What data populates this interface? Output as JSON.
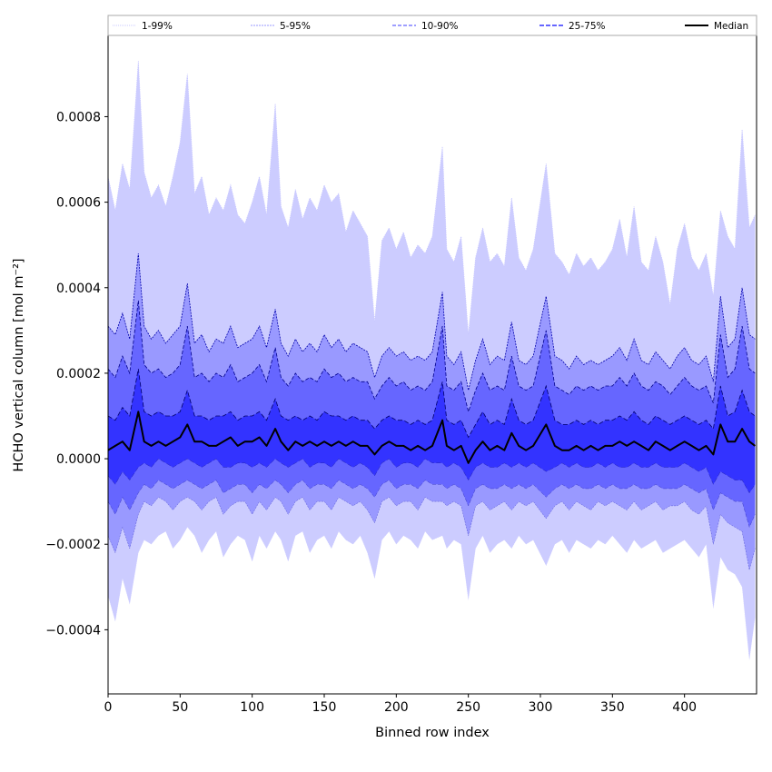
{
  "chart_data": {
    "type": "area",
    "title": "",
    "xlabel": "Binned row index",
    "ylabel": "HCHO vertical column [mol m⁻²]",
    "xlim": [
      0,
      450
    ],
    "ylim": [
      -0.00055,
      0.00099
    ],
    "x_ticks": [
      0,
      50,
      100,
      150,
      200,
      250,
      300,
      350,
      400
    ],
    "x_tick_labels": [
      "0",
      "50",
      "100",
      "150",
      "200",
      "250",
      "300",
      "350",
      "400"
    ],
    "y_ticks": [
      -0.0004,
      -0.0002,
      0.0,
      0.0002,
      0.0004,
      0.0006,
      0.0008
    ],
    "y_tick_labels": [
      "−0.0004",
      "−0.0002",
      "0.0000",
      "0.0002",
      "0.0004",
      "0.0006",
      "0.0008"
    ],
    "grid": false,
    "legend_position": "top, above plot, single row",
    "x": [
      0,
      5,
      10,
      15,
      21,
      25,
      30,
      35,
      40,
      45,
      50,
      55,
      60,
      65,
      70,
      75,
      80,
      85,
      90,
      95,
      100,
      105,
      110,
      116,
      120,
      125,
      130,
      135,
      140,
      145,
      150,
      155,
      160,
      165,
      170,
      175,
      180,
      185,
      190,
      195,
      200,
      205,
      210,
      215,
      220,
      225,
      232,
      235,
      240,
      245,
      250,
      255,
      260,
      265,
      270,
      275,
      280,
      285,
      290,
      295,
      304,
      310,
      315,
      320,
      325,
      330,
      335,
      340,
      345,
      350,
      355,
      360,
      365,
      370,
      375,
      380,
      385,
      390,
      395,
      400,
      405,
      410,
      415,
      420,
      425,
      430,
      435,
      440,
      445,
      449
    ],
    "series": [
      {
        "name": "1-99%",
        "color": "#ccccff",
        "upper": [
          0.00066,
          0.00058,
          0.00069,
          0.00063,
          0.00093,
          0.00067,
          0.00061,
          0.00064,
          0.00059,
          0.00066,
          0.00074,
          0.0009,
          0.00062,
          0.00066,
          0.00057,
          0.00061,
          0.00058,
          0.00064,
          0.00057,
          0.00055,
          0.0006,
          0.00066,
          0.00057,
          0.00083,
          0.00059,
          0.00054,
          0.00063,
          0.00056,
          0.00061,
          0.00058,
          0.00064,
          0.0006,
          0.00062,
          0.00053,
          0.00058,
          0.00055,
          0.00052,
          0.00032,
          0.00051,
          0.00054,
          0.00049,
          0.00053,
          0.00047,
          0.0005,
          0.00048,
          0.00052,
          0.00073,
          0.00049,
          0.00046,
          0.00052,
          0.00029,
          0.00047,
          0.00054,
          0.00046,
          0.00048,
          0.00045,
          0.00061,
          0.00047,
          0.00044,
          0.00049,
          0.00069,
          0.00048,
          0.00046,
          0.00043,
          0.00048,
          0.00045,
          0.00047,
          0.00044,
          0.00046,
          0.00049,
          0.00056,
          0.00047,
          0.00059,
          0.00046,
          0.00044,
          0.00052,
          0.00046,
          0.00036,
          0.00049,
          0.00055,
          0.00047,
          0.00044,
          0.00048,
          0.00038,
          0.00058,
          0.00052,
          0.00049,
          0.00077,
          0.00054,
          0.00057
        ],
        "lower": [
          -0.00032,
          -0.00038,
          -0.00028,
          -0.00034,
          -0.00022,
          -0.00019,
          -0.0002,
          -0.00018,
          -0.00017,
          -0.00021,
          -0.00019,
          -0.00016,
          -0.00018,
          -0.00022,
          -0.00019,
          -0.00017,
          -0.00023,
          -0.0002,
          -0.00018,
          -0.00019,
          -0.00024,
          -0.00018,
          -0.00021,
          -0.00017,
          -0.00019,
          -0.00024,
          -0.00018,
          -0.00017,
          -0.00022,
          -0.00019,
          -0.00018,
          -0.00021,
          -0.00017,
          -0.00019,
          -0.0002,
          -0.00018,
          -0.00022,
          -0.00028,
          -0.00019,
          -0.00017,
          -0.0002,
          -0.00018,
          -0.00019,
          -0.00021,
          -0.00017,
          -0.00019,
          -0.00018,
          -0.00021,
          -0.00019,
          -0.0002,
          -0.00033,
          -0.00021,
          -0.00018,
          -0.00022,
          -0.0002,
          -0.00019,
          -0.00021,
          -0.00018,
          -0.0002,
          -0.00019,
          -0.00025,
          -0.0002,
          -0.00019,
          -0.00022,
          -0.00019,
          -0.0002,
          -0.00021,
          -0.00019,
          -0.0002,
          -0.00018,
          -0.0002,
          -0.00022,
          -0.00019,
          -0.00021,
          -0.0002,
          -0.00019,
          -0.00022,
          -0.00021,
          -0.0002,
          -0.00019,
          -0.00021,
          -0.00023,
          -0.0002,
          -0.00035,
          -0.00023,
          -0.00026,
          -0.00027,
          -0.0003,
          -0.00047,
          -0.00037
        ]
      },
      {
        "name": "5-95%",
        "color": "#9999ff",
        "upper": [
          0.00031,
          0.00029,
          0.00034,
          0.00028,
          0.00048,
          0.00031,
          0.00028,
          0.0003,
          0.00027,
          0.00029,
          0.00031,
          0.00041,
          0.00027,
          0.00029,
          0.00025,
          0.00028,
          0.00027,
          0.00031,
          0.00026,
          0.00027,
          0.00028,
          0.00031,
          0.00026,
          0.00035,
          0.00027,
          0.00024,
          0.00028,
          0.00025,
          0.00027,
          0.00025,
          0.00029,
          0.00026,
          0.00028,
          0.00025,
          0.00027,
          0.00026,
          0.00025,
          0.00019,
          0.00024,
          0.00026,
          0.00024,
          0.00025,
          0.00023,
          0.00024,
          0.00023,
          0.00025,
          0.00039,
          0.00024,
          0.00022,
          0.00025,
          0.00016,
          0.00023,
          0.00028,
          0.00022,
          0.00024,
          0.00023,
          0.00032,
          0.00023,
          0.00022,
          0.00024,
          0.00038,
          0.00024,
          0.00023,
          0.00021,
          0.00024,
          0.00022,
          0.00023,
          0.00022,
          0.00023,
          0.00024,
          0.00026,
          0.00023,
          0.00028,
          0.00023,
          0.00022,
          0.00025,
          0.00023,
          0.00021,
          0.00024,
          0.00026,
          0.00023,
          0.00022,
          0.00024,
          0.00018,
          0.00038,
          0.00026,
          0.00028,
          0.0004,
          0.00029,
          0.00028
        ],
        "lower": [
          -0.00018,
          -0.00022,
          -0.00016,
          -0.00021,
          -0.00013,
          -0.0001,
          -0.00011,
          -9e-05,
          -0.0001,
          -0.00012,
          -0.0001,
          -9e-05,
          -0.0001,
          -0.00012,
          -0.0001,
          -9e-05,
          -0.00013,
          -0.00011,
          -0.0001,
          -0.0001,
          -0.00013,
          -0.0001,
          -0.00012,
          -9e-05,
          -0.0001,
          -0.00013,
          -0.0001,
          -9e-05,
          -0.00012,
          -0.0001,
          -0.0001,
          -0.00012,
          -9e-05,
          -0.0001,
          -0.00011,
          -0.0001,
          -0.00012,
          -0.00015,
          -0.0001,
          -9e-05,
          -0.00011,
          -0.0001,
          -0.0001,
          -0.00012,
          -9e-05,
          -0.0001,
          -0.0001,
          -0.00011,
          -0.0001,
          -0.00011,
          -0.00018,
          -0.00011,
          -0.0001,
          -0.00012,
          -0.00011,
          -0.0001,
          -0.00012,
          -0.0001,
          -0.00011,
          -0.0001,
          -0.00014,
          -0.00011,
          -0.0001,
          -0.00012,
          -0.0001,
          -0.00011,
          -0.00012,
          -0.0001,
          -0.00011,
          -0.0001,
          -0.00011,
          -0.00012,
          -0.0001,
          -0.00012,
          -0.00011,
          -0.0001,
          -0.00012,
          -0.00011,
          -0.00011,
          -0.0001,
          -0.00012,
          -0.00013,
          -0.00011,
          -0.0002,
          -0.00013,
          -0.00015,
          -0.00016,
          -0.00017,
          -0.00026,
          -0.00021
        ]
      },
      {
        "name": "10-90%",
        "color": "#6666ff",
        "upper": [
          0.00021,
          0.00019,
          0.00024,
          0.0002,
          0.00037,
          0.00022,
          0.0002,
          0.00021,
          0.00019,
          0.0002,
          0.00022,
          0.00031,
          0.00019,
          0.0002,
          0.00018,
          0.0002,
          0.00019,
          0.00022,
          0.00018,
          0.00019,
          0.0002,
          0.00022,
          0.00018,
          0.00026,
          0.00019,
          0.00017,
          0.0002,
          0.00018,
          0.00019,
          0.00018,
          0.00021,
          0.00019,
          0.0002,
          0.00018,
          0.00019,
          0.00018,
          0.00018,
          0.00014,
          0.00017,
          0.00019,
          0.00017,
          0.00018,
          0.00016,
          0.00017,
          0.00016,
          0.00018,
          0.00031,
          0.00017,
          0.00016,
          0.00018,
          0.00011,
          0.00016,
          0.0002,
          0.00016,
          0.00017,
          0.00016,
          0.00024,
          0.00017,
          0.00016,
          0.00017,
          0.0003,
          0.00017,
          0.00016,
          0.00015,
          0.00017,
          0.00016,
          0.00017,
          0.00016,
          0.00017,
          0.00017,
          0.00019,
          0.00017,
          0.0002,
          0.00017,
          0.00016,
          0.00018,
          0.00017,
          0.00015,
          0.00017,
          0.00019,
          0.00017,
          0.00016,
          0.00017,
          0.00013,
          0.00029,
          0.00019,
          0.00021,
          0.00031,
          0.00021,
          0.0002
        ],
        "lower": [
          -0.0001,
          -0.00013,
          -9e-05,
          -0.00012,
          -8e-05,
          -6e-05,
          -7e-05,
          -5e-05,
          -6e-05,
          -7e-05,
          -6e-05,
          -5e-05,
          -6e-05,
          -7e-05,
          -6e-05,
          -5e-05,
          -8e-05,
          -7e-05,
          -6e-05,
          -6e-05,
          -8e-05,
          -6e-05,
          -7e-05,
          -5e-05,
          -6e-05,
          -8e-05,
          -6e-05,
          -5e-05,
          -7e-05,
          -6e-05,
          -6e-05,
          -7e-05,
          -5e-05,
          -6e-05,
          -7e-05,
          -6e-05,
          -7e-05,
          -9e-05,
          -6e-05,
          -5e-05,
          -7e-05,
          -6e-05,
          -6e-05,
          -7e-05,
          -5e-05,
          -6e-05,
          -6e-05,
          -7e-05,
          -6e-05,
          -7e-05,
          -0.00011,
          -7e-05,
          -6e-05,
          -7e-05,
          -7e-05,
          -6e-05,
          -7e-05,
          -6e-05,
          -7e-05,
          -6e-05,
          -9e-05,
          -7e-05,
          -6e-05,
          -7e-05,
          -6e-05,
          -7e-05,
          -7e-05,
          -6e-05,
          -7e-05,
          -6e-05,
          -7e-05,
          -7e-05,
          -6e-05,
          -7e-05,
          -7e-05,
          -6e-05,
          -7e-05,
          -7e-05,
          -7e-05,
          -6e-05,
          -7e-05,
          -8e-05,
          -7e-05,
          -0.00012,
          -8e-05,
          -9e-05,
          -0.0001,
          -0.0001,
          -0.00016,
          -0.00013
        ]
      },
      {
        "name": "25-75%",
        "color": "#3333ff",
        "upper": [
          0.0001,
          9e-05,
          0.00012,
          0.0001,
          0.00021,
          0.00011,
          0.0001,
          0.00011,
          0.0001,
          0.0001,
          0.00011,
          0.00016,
          0.0001,
          0.0001,
          9e-05,
          0.0001,
          0.0001,
          0.00011,
          9e-05,
          0.0001,
          0.0001,
          0.00011,
          9e-05,
          0.00014,
          0.0001,
          9e-05,
          0.0001,
          9e-05,
          0.0001,
          9e-05,
          0.00011,
          0.0001,
          0.0001,
          9e-05,
          0.0001,
          9e-05,
          9e-05,
          7e-05,
          9e-05,
          0.0001,
          9e-05,
          9e-05,
          8e-05,
          9e-05,
          8e-05,
          9e-05,
          0.00018,
          9e-05,
          8e-05,
          9e-05,
          5e-05,
          8e-05,
          0.00011,
          8e-05,
          9e-05,
          8e-05,
          0.00014,
          9e-05,
          8e-05,
          9e-05,
          0.00017,
          9e-05,
          8e-05,
          8e-05,
          9e-05,
          8e-05,
          9e-05,
          8e-05,
          9e-05,
          9e-05,
          0.0001,
          9e-05,
          0.00011,
          9e-05,
          8e-05,
          0.0001,
          9e-05,
          8e-05,
          9e-05,
          0.0001,
          9e-05,
          8e-05,
          9e-05,
          7e-05,
          0.00017,
          0.0001,
          0.00011,
          0.00016,
          0.00011,
          0.0001
        ],
        "lower": [
          -4e-05,
          -6e-05,
          -3e-05,
          -5e-05,
          -2e-05,
          -1e-05,
          -2e-05,
          0.0,
          -1e-05,
          -2e-05,
          -1e-05,
          0.0,
          -1e-05,
          -2e-05,
          -1e-05,
          0.0,
          -2e-05,
          -2e-05,
          -1e-05,
          -1e-05,
          -2e-05,
          -1e-05,
          -2e-05,
          0.0,
          -1e-05,
          -2e-05,
          -1e-05,
          0.0,
          -2e-05,
          -1e-05,
          -1e-05,
          -2e-05,
          0.0,
          -1e-05,
          -2e-05,
          -1e-05,
          -2e-05,
          -4e-05,
          -1e-05,
          0.0,
          -2e-05,
          -1e-05,
          -1e-05,
          -2e-05,
          0.0,
          -1e-05,
          -1e-05,
          -2e-05,
          -1e-05,
          -2e-05,
          -5e-05,
          -2e-05,
          -1e-05,
          -2e-05,
          -2e-05,
          -1e-05,
          -2e-05,
          -1e-05,
          -2e-05,
          -1e-05,
          -3e-05,
          -2e-05,
          -1e-05,
          -2e-05,
          -1e-05,
          -2e-05,
          -2e-05,
          -1e-05,
          -2e-05,
          -1e-05,
          -2e-05,
          -2e-05,
          -1e-05,
          -2e-05,
          -2e-05,
          -1e-05,
          -2e-05,
          -2e-05,
          -2e-05,
          -1e-05,
          -2e-05,
          -3e-05,
          -2e-05,
          -6e-05,
          -3e-05,
          -4e-05,
          -5e-05,
          -5e-05,
          -8e-05,
          -6e-05
        ]
      },
      {
        "name": "Median",
        "color": "#000000",
        "values": [
          2e-05,
          3e-05,
          4e-05,
          2e-05,
          0.00011,
          4e-05,
          3e-05,
          4e-05,
          3e-05,
          4e-05,
          5e-05,
          8e-05,
          4e-05,
          4e-05,
          3e-05,
          3e-05,
          4e-05,
          5e-05,
          3e-05,
          4e-05,
          4e-05,
          5e-05,
          3e-05,
          7e-05,
          4e-05,
          2e-05,
          4e-05,
          3e-05,
          4e-05,
          3e-05,
          4e-05,
          3e-05,
          4e-05,
          3e-05,
          4e-05,
          3e-05,
          3e-05,
          1e-05,
          3e-05,
          4e-05,
          3e-05,
          3e-05,
          2e-05,
          3e-05,
          2e-05,
          3e-05,
          9e-05,
          3e-05,
          2e-05,
          3e-05,
          -1e-05,
          2e-05,
          4e-05,
          2e-05,
          3e-05,
          2e-05,
          6e-05,
          3e-05,
          2e-05,
          3e-05,
          8e-05,
          3e-05,
          2e-05,
          2e-05,
          3e-05,
          2e-05,
          3e-05,
          2e-05,
          3e-05,
          3e-05,
          4e-05,
          3e-05,
          4e-05,
          3e-05,
          2e-05,
          4e-05,
          3e-05,
          2e-05,
          3e-05,
          4e-05,
          3e-05,
          2e-05,
          3e-05,
          1e-05,
          8e-05,
          4e-05,
          4e-05,
          7e-05,
          4e-05,
          3e-05
        ]
      }
    ]
  }
}
